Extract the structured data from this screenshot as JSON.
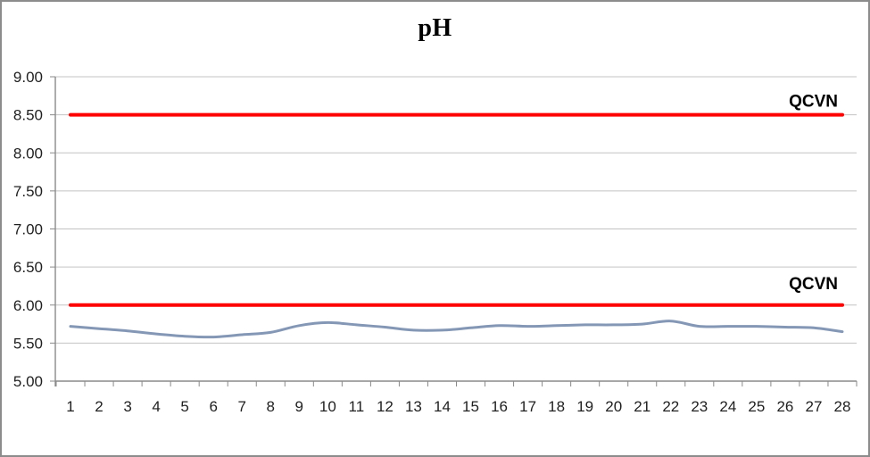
{
  "chart_data": {
    "type": "line",
    "title": "pH",
    "x": [
      1,
      2,
      3,
      4,
      5,
      6,
      7,
      8,
      9,
      10,
      11,
      12,
      13,
      14,
      15,
      16,
      17,
      18,
      19,
      20,
      21,
      22,
      23,
      24,
      25,
      26,
      27,
      28
    ],
    "xtick_labels": [
      "1",
      "2",
      "3",
      "4",
      "5",
      "6",
      "7",
      "8",
      "9",
      "10",
      "11",
      "12",
      "13",
      "14",
      "15",
      "16",
      "17",
      "18",
      "19",
      "20",
      "21",
      "22",
      "23",
      "24",
      "25",
      "26",
      "27",
      "28"
    ],
    "series": [
      {
        "name": "pH",
        "color": "#8498B6",
        "smooth": true,
        "values": [
          5.72,
          5.69,
          5.66,
          5.62,
          5.59,
          5.58,
          5.61,
          5.64,
          5.73,
          5.77,
          5.74,
          5.71,
          5.67,
          5.67,
          5.7,
          5.73,
          5.72,
          5.73,
          5.74,
          5.74,
          5.75,
          5.79,
          5.72,
          5.72,
          5.72,
          5.71,
          5.7,
          5.65
        ]
      }
    ],
    "limit_lines": [
      {
        "label": "QCVN",
        "value": 8.5,
        "color": "#FF0000"
      },
      {
        "label": "QCVN",
        "value": 6.0,
        "color": "#FF0000"
      }
    ],
    "ylim": [
      5.0,
      9.0
    ],
    "ytick_step": 0.5,
    "ytick_labels": [
      "5.00",
      "5.50",
      "6.00",
      "6.50",
      "7.00",
      "7.50",
      "8.00",
      "8.50",
      "9.00"
    ],
    "grid": true,
    "legend_position": "none"
  },
  "style": {
    "background": "#FFFFFF",
    "border_color": "#8C8C8C",
    "gridline_color": "#C3C3C3",
    "axis_color": "#8A8A8A",
    "text_color": "#1F1F1F",
    "series_color": "#8498B6",
    "limit_color": "#FF0000"
  }
}
